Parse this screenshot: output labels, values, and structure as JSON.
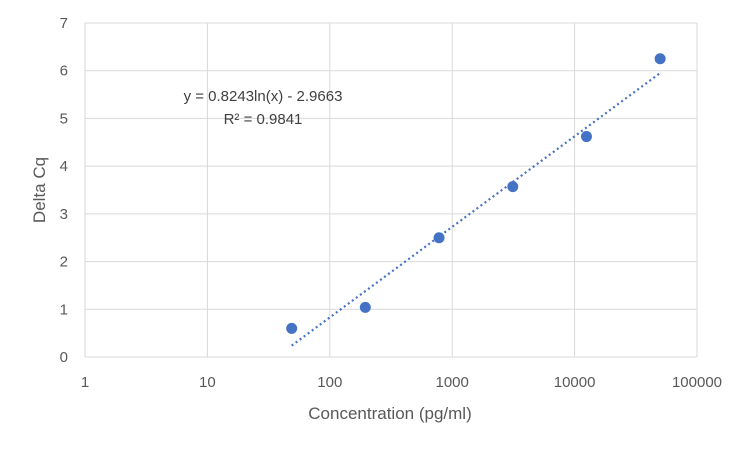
{
  "chart_data": {
    "type": "scatter",
    "title": "",
    "xlabel": "Concentration (pg/ml)",
    "ylabel": "Delta Cq",
    "x_scale": "log10",
    "xlim": [
      1,
      100000
    ],
    "ylim": [
      0,
      7
    ],
    "x_ticks": [
      "1",
      "10",
      "100",
      "1000",
      "10000",
      "100000"
    ],
    "y_ticks": [
      "0",
      "1",
      "2",
      "3",
      "4",
      "5",
      "6",
      "7"
    ],
    "grid": true,
    "legend": "none",
    "series": [
      {
        "color": "#4472C4",
        "points": [
          {
            "x": 48.8,
            "y": 0.6
          },
          {
            "x": 195,
            "y": 1.04
          },
          {
            "x": 781,
            "y": 2.5
          },
          {
            "x": 3125,
            "y": 3.57
          },
          {
            "x": 12500,
            "y": 4.62
          },
          {
            "x": 50000,
            "y": 6.25
          }
        ]
      }
    ],
    "trendline": {
      "type": "logarithmic",
      "style": "dotted",
      "color": "#4472C4",
      "slope": 0.8243,
      "intercept": -2.9663,
      "x_range": [
        48.8,
        50000
      ],
      "equation": "y = 0.8243ln(x) - 2.9663",
      "r_squared": "R² = 0.9841"
    }
  }
}
